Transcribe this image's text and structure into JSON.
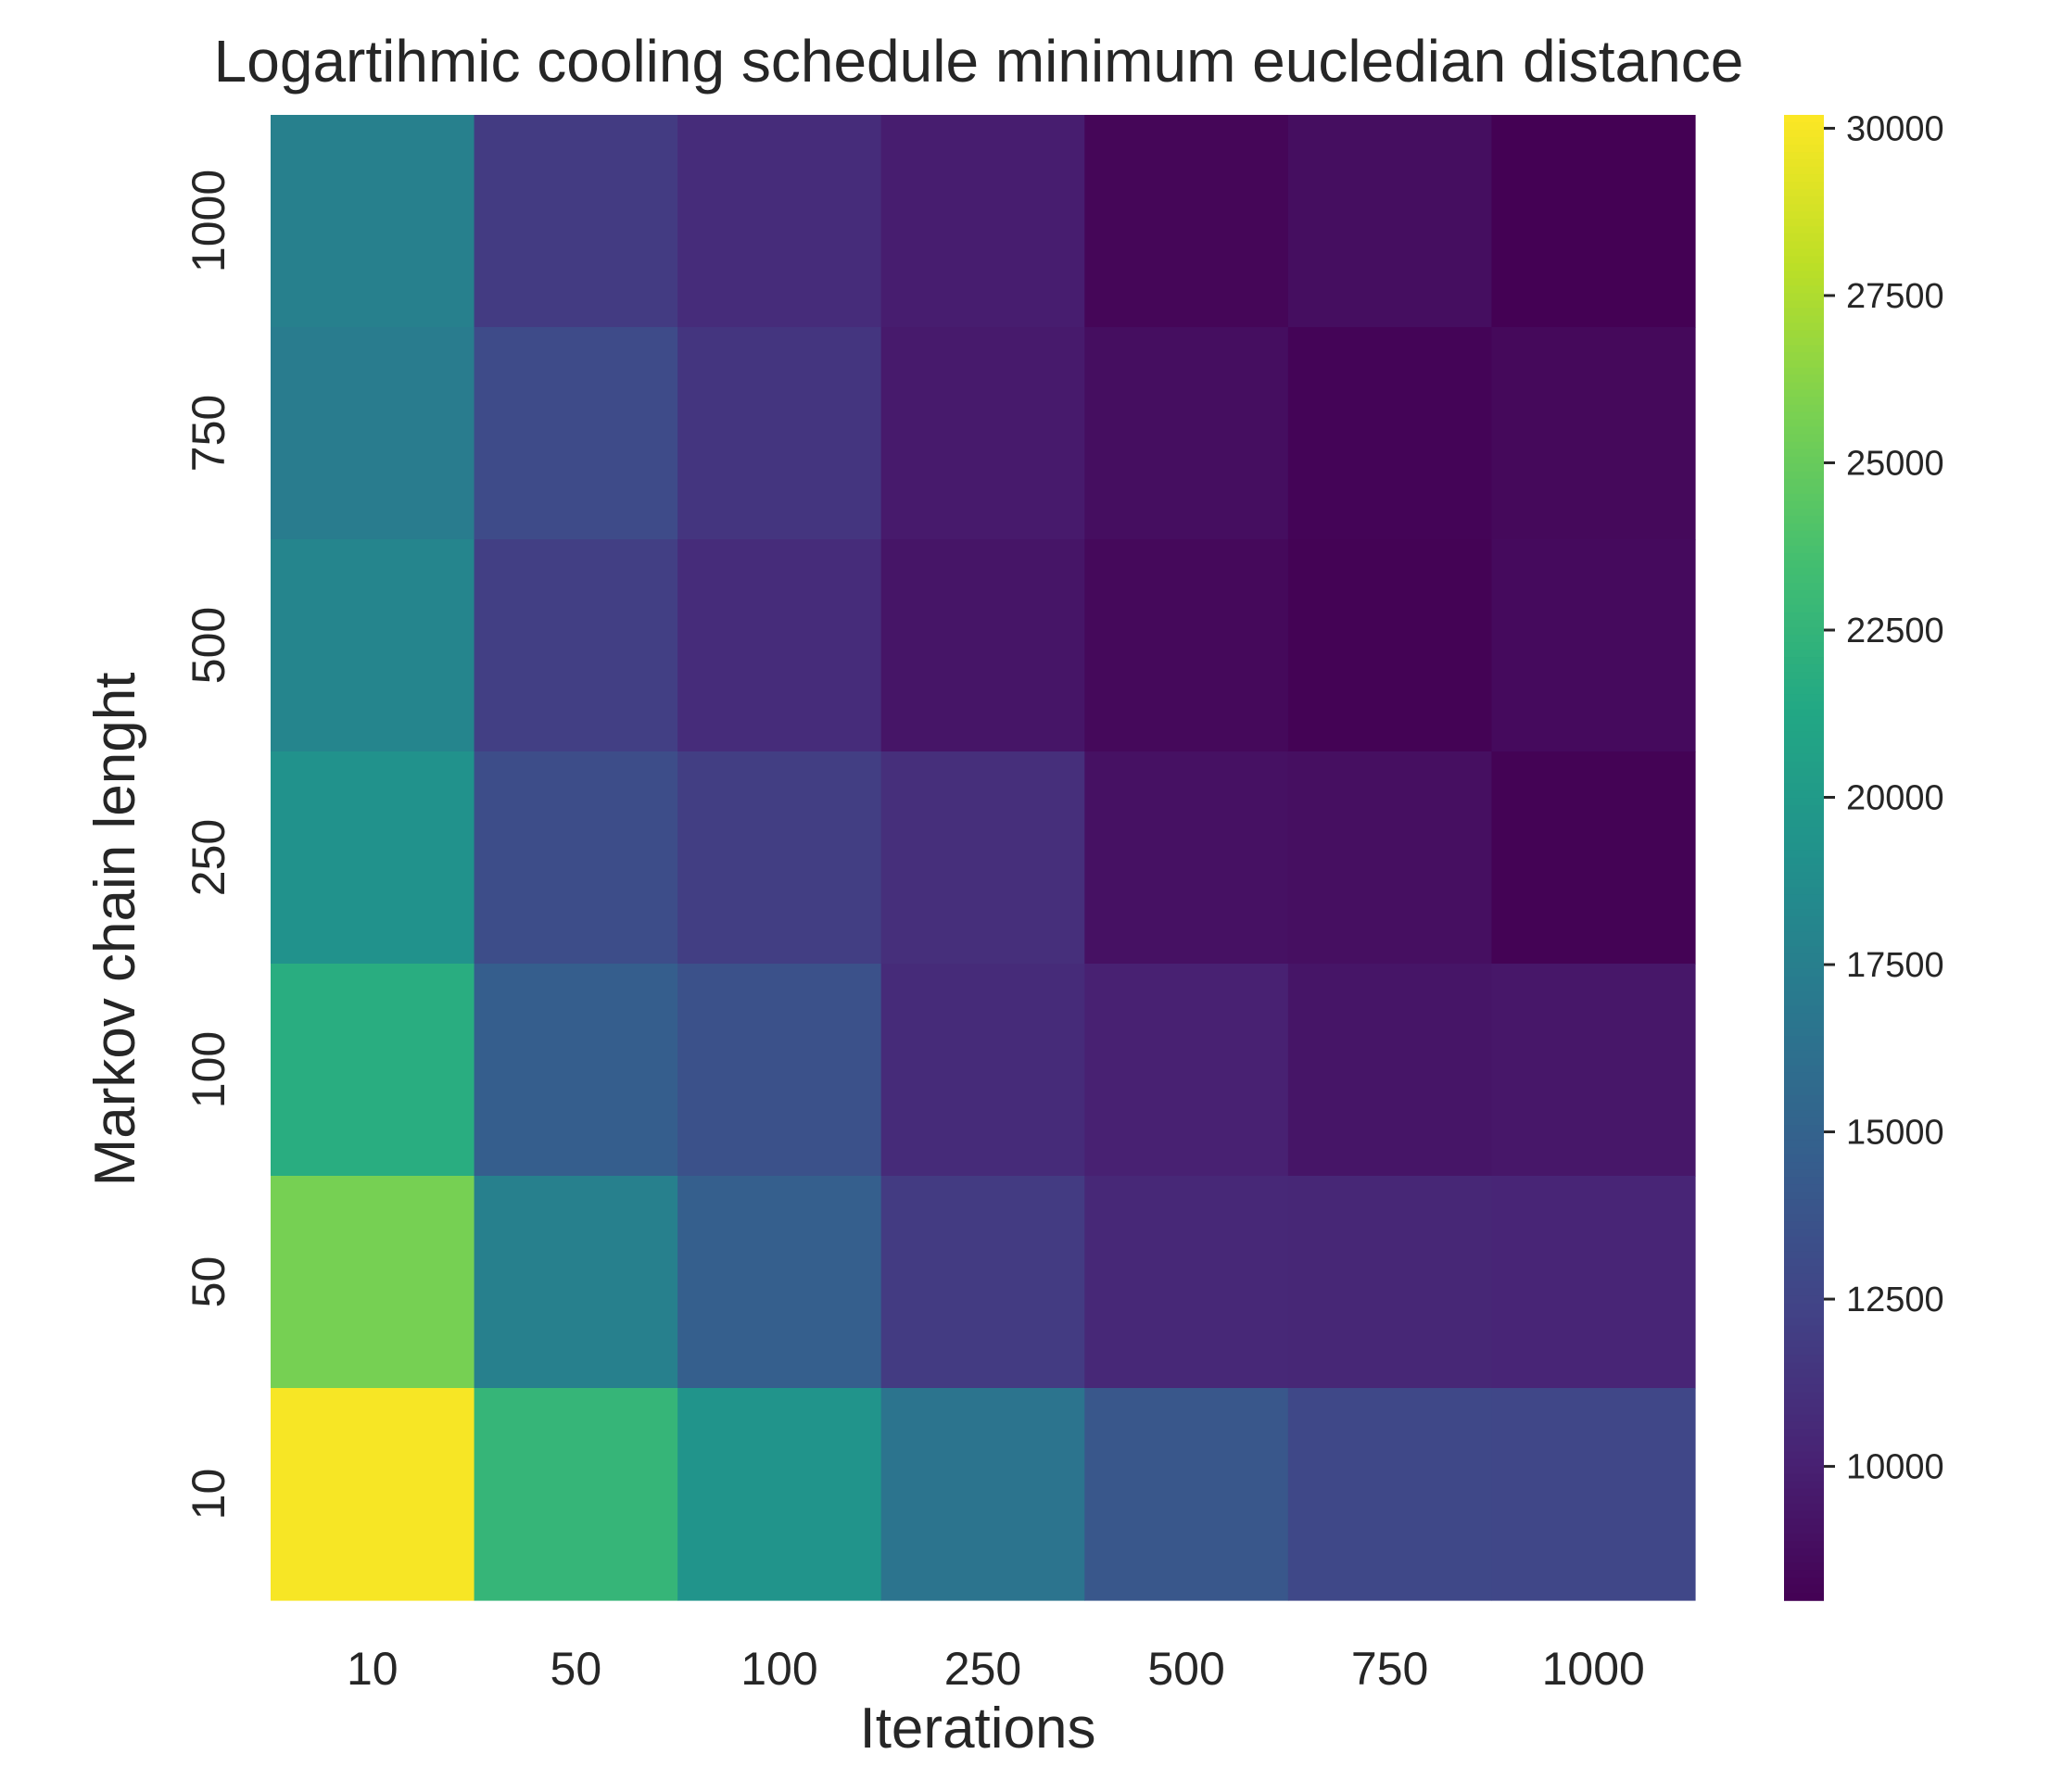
{
  "chart_data": {
    "type": "heatmap",
    "title": "Logartihmic cooling schedule  minimum eucledian distance",
    "xlabel": "Iterations",
    "ylabel": "Markov chain lenght",
    "x_categories": [
      "10",
      "50",
      "100",
      "250",
      "500",
      "750",
      "1000"
    ],
    "y_categories": [
      "1000",
      "750",
      "500",
      "250",
      "100",
      "50",
      "10"
    ],
    "values": [
      [
        17600,
        11800,
        10800,
        9800,
        8300,
        8800,
        8000
      ],
      [
        17200,
        13000,
        11400,
        9600,
        8800,
        8200,
        8500
      ],
      [
        18000,
        12100,
        10800,
        9300,
        8500,
        8100,
        8600
      ],
      [
        19200,
        13200,
        12000,
        11000,
        9000,
        8900,
        8100
      ],
      [
        21800,
        14600,
        13500,
        10700,
        10000,
        9300,
        9400
      ],
      [
        25600,
        17600,
        14700,
        11800,
        10500,
        10400,
        10300
      ],
      [
        30000,
        22600,
        19400,
        16500,
        14000,
        12800,
        12700
      ]
    ],
    "colormap": "viridis",
    "vmin": 8000,
    "vmax": 30200,
    "colorbar": {
      "ticks": [
        10000,
        12500,
        15000,
        17500,
        20000,
        22500,
        25000,
        27500,
        30000
      ],
      "tick_labels": [
        "10000",
        "12500",
        "15000",
        "17500",
        "20000",
        "22500",
        "25000",
        "27500",
        "30000"
      ]
    },
    "grid": false,
    "legend": "colorbar-right"
  }
}
